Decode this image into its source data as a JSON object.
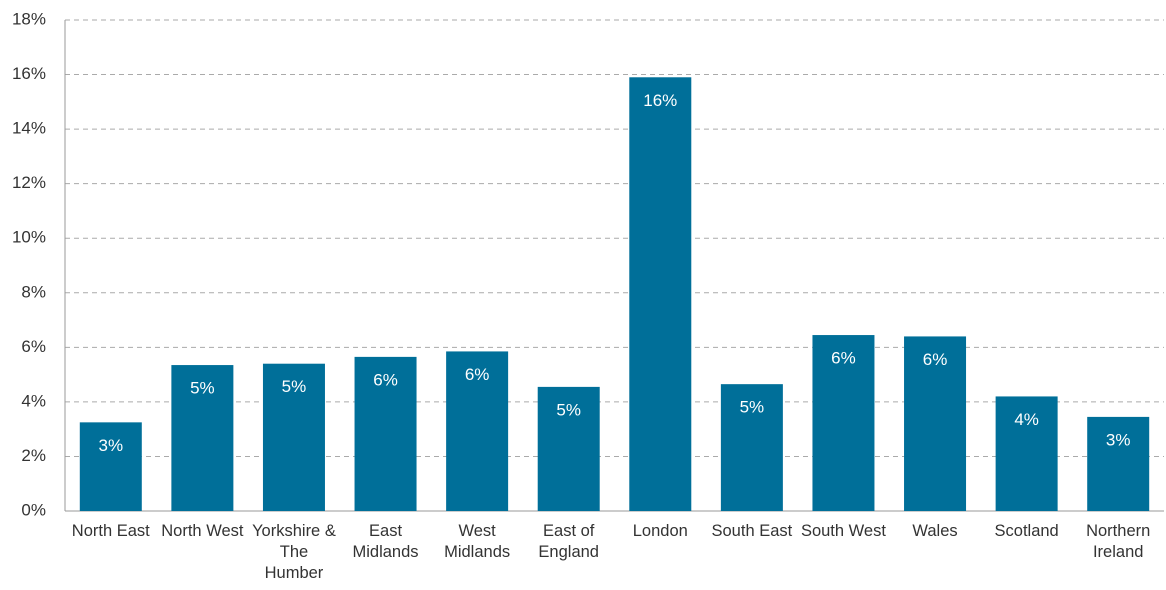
{
  "chart_data": {
    "type": "bar",
    "categories": [
      "North East",
      "North West",
      "Yorkshire & The Humber",
      "East Midlands",
      "West Midlands",
      "East of England",
      "London",
      "South East",
      "South West",
      "Wales",
      "Scotland",
      "Northern Ireland"
    ],
    "values": [
      3.25,
      5.35,
      5.4,
      5.65,
      5.85,
      4.55,
      15.9,
      4.65,
      6.45,
      6.4,
      4.2,
      3.45
    ],
    "value_labels": [
      "3%",
      "5%",
      "5%",
      "6%",
      "6%",
      "5%",
      "16%",
      "5%",
      "6%",
      "6%",
      "4%",
      "3%"
    ],
    "color": "#006f99",
    "ylim": [
      0,
      18
    ],
    "yticks": [
      {
        "value": 0,
        "label": "0%"
      },
      {
        "value": 2,
        "label": "2%"
      },
      {
        "value": 4,
        "label": "4%"
      },
      {
        "value": 6,
        "label": "6%"
      },
      {
        "value": 8,
        "label": "8%"
      },
      {
        "value": 10,
        "label": "10%"
      },
      {
        "value": 12,
        "label": "12%"
      },
      {
        "value": 14,
        "label": "14%"
      },
      {
        "value": 16,
        "label": "16%"
      },
      {
        "value": 18,
        "label": "18%"
      }
    ],
    "grid": true
  }
}
